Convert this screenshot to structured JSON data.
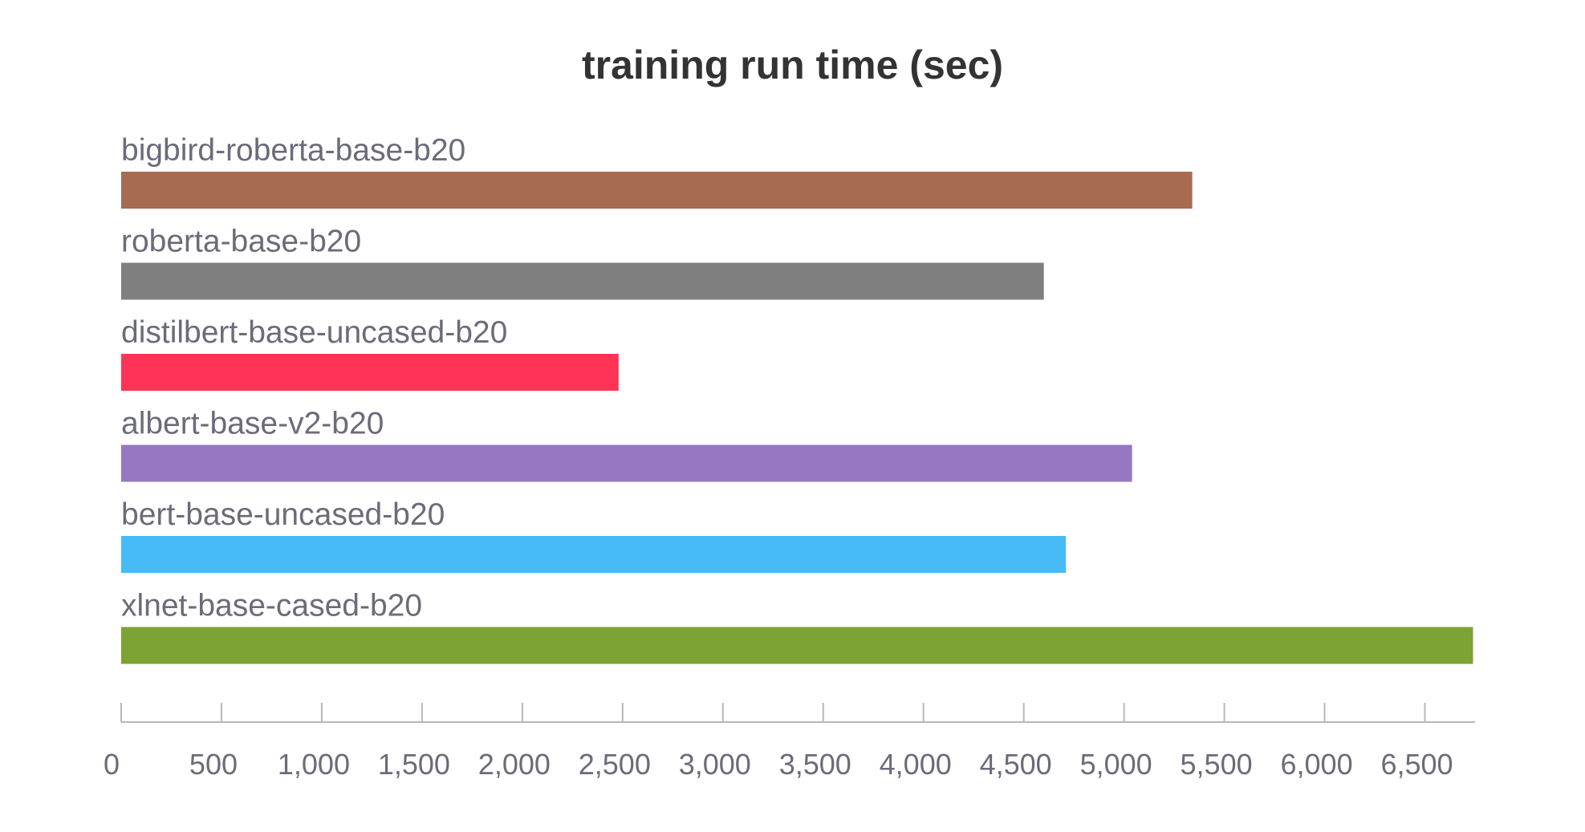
{
  "chart_data": {
    "type": "bar",
    "orientation": "horizontal",
    "title": "training run time (sec)",
    "xlabel": "",
    "ylabel": "",
    "categories": [
      "bigbird-roberta-base-b20",
      "roberta-base-b20",
      "distilbert-base-uncased-b20",
      "albert-base-v2-b20",
      "bert-base-uncased-b20",
      "xlnet-base-cased-b20"
    ],
    "values": [
      5340,
      4600,
      2480,
      5040,
      4710,
      6740
    ],
    "colors": [
      "#a66b51",
      "#7f7f7f",
      "#ff3355",
      "#9577c2",
      "#46bbf6",
      "#7da335"
    ],
    "xlim": [
      0,
      6750
    ],
    "xticks": [
      0,
      500,
      1000,
      1500,
      2000,
      2500,
      3000,
      3500,
      4000,
      4500,
      5000,
      5500,
      6000,
      6500
    ],
    "xtick_labels": [
      "0",
      "500",
      "1,000",
      "1,500",
      "2,000",
      "2,500",
      "3,000",
      "3,500",
      "4,000",
      "4,500",
      "5,000",
      "5,500",
      "6,000",
      "6,500"
    ],
    "grid": false,
    "legend": "none"
  }
}
